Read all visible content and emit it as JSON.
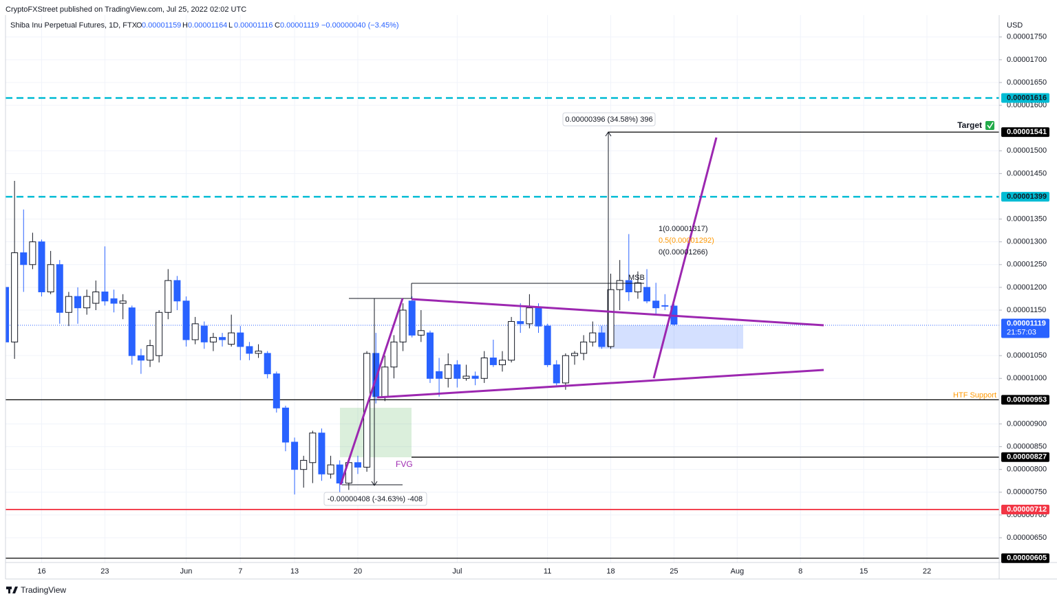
{
  "chart_data": {
    "type": "candlestick",
    "header": "CryptoFXStreet published on TradingView.com, Jul 25, 2022 02:02 UTC",
    "symbol": "Shiba Inu Perpetual Futures, 1D, FTX",
    "ohlc_legend": [
      {
        "label": "O",
        "value": "0.00001159"
      },
      {
        "label": "H",
        "value": "0.00001164"
      },
      {
        "label": "L",
        "value": "0.00001116"
      },
      {
        "label": "C",
        "value": "0.00001119"
      }
    ],
    "change": "−0.00000040 (−3.45%)",
    "currency": "USD",
    "countdown": "21:57:03",
    "footer": "TradingView",
    "up_color": "#ffffff",
    "down_color": "#2962ff",
    "grid": true,
    "x": [
      "2022-05-12",
      "2022-05-13",
      "2022-05-14",
      "2022-05-15",
      "2022-05-16",
      "2022-05-17",
      "2022-05-18",
      "2022-05-19",
      "2022-05-20",
      "2022-05-21",
      "2022-05-22",
      "2022-05-23",
      "2022-05-24",
      "2022-05-25",
      "2022-05-26",
      "2022-05-27",
      "2022-05-28",
      "2022-05-29",
      "2022-05-30",
      "2022-05-31",
      "2022-06-01",
      "2022-06-02",
      "2022-06-03",
      "2022-06-04",
      "2022-06-05",
      "2022-06-06",
      "2022-06-07",
      "2022-06-08",
      "2022-06-09",
      "2022-06-10",
      "2022-06-11",
      "2022-06-12",
      "2022-06-13",
      "2022-06-14",
      "2022-06-15",
      "2022-06-16",
      "2022-06-17",
      "2022-06-18",
      "2022-06-19",
      "2022-06-20",
      "2022-06-21",
      "2022-06-22",
      "2022-06-23",
      "2022-06-24",
      "2022-06-25",
      "2022-06-26",
      "2022-06-27",
      "2022-06-28",
      "2022-06-29",
      "2022-06-30",
      "2022-07-01",
      "2022-07-02",
      "2022-07-03",
      "2022-07-04",
      "2022-07-05",
      "2022-07-06",
      "2022-07-07",
      "2022-07-08",
      "2022-07-09",
      "2022-07-10",
      "2022-07-11",
      "2022-07-12",
      "2022-07-13",
      "2022-07-14",
      "2022-07-15",
      "2022-07-16",
      "2022-07-17",
      "2022-07-18",
      "2022-07-19",
      "2022-07-20",
      "2022-07-21",
      "2022-07-22",
      "2022-07-23",
      "2022-07-24",
      "2022-07-25"
    ],
    "open": [
      1.2e-05,
      1.08e-05,
      1.276e-05,
      1.25e-05,
      1.3e-05,
      1.19e-05,
      1.25e-05,
      1.145e-05,
      1.18e-05,
      1.155e-05,
      1.165e-05,
      1.19e-05,
      1.175e-05,
      1.165e-05,
      1.155e-05,
      1.05e-05,
      1.04e-05,
      1.05e-05,
      1.145e-05,
      1.215e-05,
      1.17e-05,
      1.085e-05,
      1.115e-05,
      1.08e-05,
      1.09e-05,
      1.075e-05,
      1.1e-05,
      1.07e-05,
      1.055e-05,
      1.055e-05,
      1.01e-05,
      9.35e-06,
      8.6e-06,
      8e-06,
      8.15e-06,
      8.8e-06,
      7.9e-06,
      8.1e-06,
      7.7e-06,
      8.15e-06,
      8.05e-06,
      1.055e-05,
      9.6e-06,
      1.025e-05,
      1.08e-05,
      1.17e-05,
      1.095e-05,
      1.1e-05,
      1.015e-05,
      1e-05,
      1.03e-05,
      1e-05,
      1.005e-05,
      1e-05,
      1.045e-05,
      1.03e-05,
      1.04e-05,
      1.125e-05,
      1.12e-05,
      1.155e-05,
      1.115e-05,
      1.03e-05,
      9.9e-06,
      1.05e-05,
      1.055e-05,
      1.08e-05,
      1.1e-05,
      1.07e-05,
      1.195e-05,
      1.215e-05,
      1.19e-05,
      1.2e-05,
      1.17e-05,
      1.16e-05,
      1.159e-05
    ],
    "high": [
      1.21e-05,
      1.434e-05,
      1.371e-05,
      1.32e-05,
      1.305e-05,
      1.28e-05,
      1.26e-05,
      1.19e-05,
      1.2e-05,
      1.195e-05,
      1.215e-05,
      1.29e-05,
      1.195e-05,
      1.185e-05,
      1.16e-05,
      1.065e-05,
      1.085e-05,
      1.15e-05,
      1.24e-05,
      1.225e-05,
      1.18e-05,
      1.135e-05,
      1.125e-05,
      1.1e-05,
      1.1e-05,
      1.14e-05,
      1.115e-05,
      1.08e-05,
      1.075e-05,
      1.06e-05,
      1.015e-05,
      9.4e-06,
      8.7e-06,
      8.3e-06,
      8.85e-06,
      8.9e-06,
      8.3e-06,
      8.2e-06,
      8.25e-06,
      8.3e-06,
      1.06e-05,
      1.1e-05,
      1.05e-05,
      1.095e-05,
      1.165e-05,
      1.18e-05,
      1.15e-05,
      1.105e-05,
      1.045e-05,
      1.055e-05,
      1.04e-05,
      1.03e-05,
      1.015e-05,
      1.06e-05,
      1.085e-05,
      1.06e-05,
      1.135e-05,
      1.165e-05,
      1.185e-05,
      1.165e-05,
      1.12e-05,
      1.04e-05,
      1.055e-05,
      1.06e-05,
      1.095e-05,
      1.125e-05,
      1.115e-05,
      1.23e-05,
      1.26e-05,
      1.317e-05,
      1.235e-05,
      1.24e-05,
      1.21e-05,
      1.185e-05,
      1.164e-05
    ],
    "low": [
      8.7e-06,
      1.043e-05,
      1.19e-05,
      1.24e-05,
      1.18e-05,
      1.185e-05,
      1.12e-05,
      1.115e-05,
      1.12e-05,
      1.14e-05,
      1.15e-05,
      1.16e-05,
      1.145e-05,
      1.13e-05,
      1.03e-05,
      1.01e-05,
      1.025e-05,
      1.035e-05,
      1.13e-05,
      1.15e-05,
      1.07e-05,
      1.075e-05,
      1.065e-05,
      1.06e-05,
      1.07e-05,
      1.07e-05,
      1.04e-05,
      1.04e-05,
      1.045e-05,
      1e-05,
      9.25e-06,
      8.4e-06,
      7.45e-06,
      7.6e-06,
      7.7e-06,
      7.75e-06,
      7.8e-06,
      7.3e-06,
      7.55e-06,
      7.9e-06,
      7.95e-06,
      9.45e-06,
      9.5e-06,
      1e-05,
      1.06e-05,
      1.09e-05,
      1.08e-05,
      9.9e-06,
      9.6e-06,
      9.8e-06,
      9.8e-06,
      9.95e-06,
      9.85e-06,
      9.9e-06,
      1.025e-05,
      1.015e-05,
      1.035e-05,
      1.1e-05,
      1.11e-05,
      1.1e-05,
      1.025e-05,
      9.85e-06,
      9.75e-06,
      1.03e-05,
      1.04e-05,
      1.07e-05,
      1.065e-05,
      1.065e-05,
      1.15e-05,
      1.17e-05,
      1.175e-05,
      1.165e-05,
      1.14e-05,
      1.15e-05,
      1.116e-05
    ],
    "close": [
      1.08e-05,
      1.276e-05,
      1.25e-05,
      1.3e-05,
      1.19e-05,
      1.25e-05,
      1.145e-05,
      1.18e-05,
      1.155e-05,
      1.18e-05,
      1.19e-05,
      1.17e-05,
      1.165e-05,
      1.17e-05,
      1.05e-05,
      1.04e-05,
      1.072e-05,
      1.145e-05,
      1.215e-05,
      1.17e-05,
      1.085e-05,
      1.12e-05,
      1.08e-05,
      1.09e-05,
      1.085e-05,
      1.1e-05,
      1.07e-05,
      1.055e-05,
      1.06e-05,
      1.01e-05,
      9.35e-06,
      8.6e-06,
      8e-06,
      8.2e-06,
      8.8e-06,
      7.9e-06,
      8.1e-06,
      7.7e-06,
      8.15e-06,
      8.05e-06,
      1.055e-05,
      9.6e-06,
      1.025e-05,
      1.08e-05,
      1.15e-05,
      1.095e-05,
      1.105e-05,
      1e-05,
      1e-05,
      1.03e-05,
      1e-05,
      1.005e-05,
      1e-05,
      1.045e-05,
      1.03e-05,
      1.04e-05,
      1.125e-05,
      1.12e-05,
      1.155e-05,
      1.115e-05,
      1.03e-05,
      9.9e-06,
      1.05e-05,
      1.055e-05,
      1.08e-05,
      1.1e-05,
      1.07e-05,
      1.195e-05,
      1.215e-05,
      1.19e-05,
      1.21e-05,
      1.17e-05,
      1.155e-05,
      1.159e-05,
      1.119e-05
    ],
    "xlim": [
      "2022-05-12",
      "2022-08-30"
    ],
    "xticks": [
      {
        "value": "2022-05-16",
        "label": "16"
      },
      {
        "value": "2022-05-23",
        "label": "23"
      },
      {
        "value": "2022-06-01",
        "label": "Jun"
      },
      {
        "value": "2022-06-07",
        "label": "7"
      },
      {
        "value": "2022-06-13",
        "label": "13"
      },
      {
        "value": "2022-06-20",
        "label": "20"
      },
      {
        "value": "2022-07-01",
        "label": "Jul"
      },
      {
        "value": "2022-07-11",
        "label": "11"
      },
      {
        "value": "2022-07-18",
        "label": "18"
      },
      {
        "value": "2022-07-25",
        "label": "25"
      },
      {
        "value": "2022-08-01",
        "label": "Aug"
      },
      {
        "value": "2022-08-08",
        "label": "8"
      },
      {
        "value": "2022-08-15",
        "label": "15"
      },
      {
        "value": "2022-08-22",
        "label": "22"
      }
    ],
    "ylim": [
      5.956e-06,
      1.798e-05
    ],
    "yticks": [
      {
        "value": 1.75e-05,
        "label": "0.00001750"
      },
      {
        "value": 1.7e-05,
        "label": "0.00001700"
      },
      {
        "value": 1.65e-05,
        "label": "0.00001650"
      },
      {
        "value": 1.6e-05,
        "label": "0.00001600"
      },
      {
        "value": 1.5e-05,
        "label": "0.00001500"
      },
      {
        "value": 1.45e-05,
        "label": "0.00001450"
      },
      {
        "value": 1.35e-05,
        "label": "0.00001350"
      },
      {
        "value": 1.3e-05,
        "label": "0.00001300"
      },
      {
        "value": 1.25e-05,
        "label": "0.00001250"
      },
      {
        "value": 1.2e-05,
        "label": "0.00001200"
      },
      {
        "value": 1.15e-05,
        "label": "0.00001150"
      },
      {
        "value": 1.05e-05,
        "label": "0.00001050"
      },
      {
        "value": 1e-05,
        "label": "0.00001000"
      },
      {
        "value": 9e-06,
        "label": "0.00000900"
      },
      {
        "value": 8.5e-06,
        "label": "0.00000850"
      },
      {
        "value": 8e-06,
        "label": "0.00000800"
      },
      {
        "value": 7.5e-06,
        "label": "0.00000750"
      },
      {
        "value": 7e-06,
        "label": "0.00000700"
      },
      {
        "value": 6.5e-06,
        "label": "0.00000650"
      }
    ],
    "levels": [
      {
        "value": 1.616e-05,
        "color": "#00bcd4",
        "dashed": true
      },
      {
        "value": 1.541e-05,
        "color": "#000000",
        "dashed": false
      },
      {
        "value": 1.399e-05,
        "color": "#00bcd4",
        "dashed": true
      },
      {
        "value": 9.53e-06,
        "color": "#000000",
        "dashed": false
      },
      {
        "value": 8.27e-06,
        "color": "#000000",
        "dashed": false
      },
      {
        "value": 7.12e-06,
        "color": "#f23645",
        "dashed": false
      },
      {
        "value": 6.05e-06,
        "color": "#000000",
        "dashed": false
      }
    ],
    "annotations": {
      "target": "Target",
      "htf_support": "HTF Support",
      "msb": "MSB",
      "fvg": "FVG",
      "measure_up": "0.00000396 (34.58%) 396",
      "measure_down": "-0.00000408 (-34.63%) -408",
      "fib": [
        "1(0.00001317)",
        "0.5(0.00001292)",
        "0(0.00001266)"
      ]
    }
  }
}
